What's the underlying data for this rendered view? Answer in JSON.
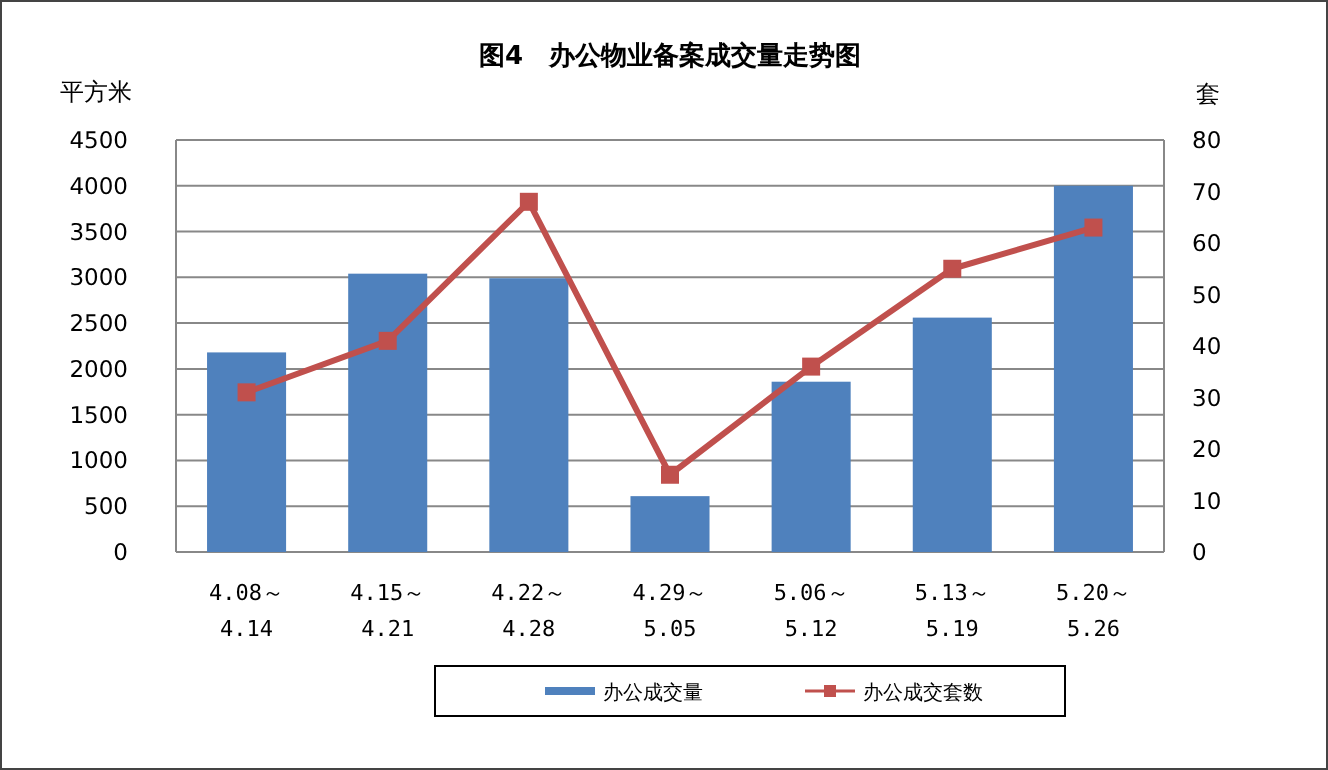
{
  "chart_data": {
    "type": "bar",
    "title": "图4　办公物业备案成交量走势图",
    "ylabel": "平方米",
    "y2label": "套",
    "categories": [
      "4.08～\n4.14",
      "4.15～\n4.21",
      "4.22～\n4.28",
      "4.29～\n5.05",
      "5.06～\n5.12",
      "5.13～\n5.19",
      "5.20～\n5.26"
    ],
    "series": [
      {
        "name": "办公成交量",
        "color": "#4f81bd",
        "values": [
          2180,
          3040,
          2990,
          610,
          1860,
          2560,
          4000
        ]
      },
      {
        "name": "办公成交套数",
        "type": "line",
        "axis": "y2",
        "color": "#c0504d",
        "marker": "square",
        "values": [
          31,
          41,
          68,
          15,
          36,
          55,
          63
        ]
      }
    ],
    "ylim": [
      0,
      4500
    ],
    "yticks": [
      0,
      500,
      1000,
      1500,
      2000,
      2500,
      3000,
      3500,
      4000,
      4500
    ],
    "y2lim": [
      0,
      80
    ],
    "y2ticks": [
      0,
      10,
      20,
      30,
      40,
      50,
      60,
      70,
      80
    ],
    "grid": "y",
    "legend": "bottom"
  }
}
